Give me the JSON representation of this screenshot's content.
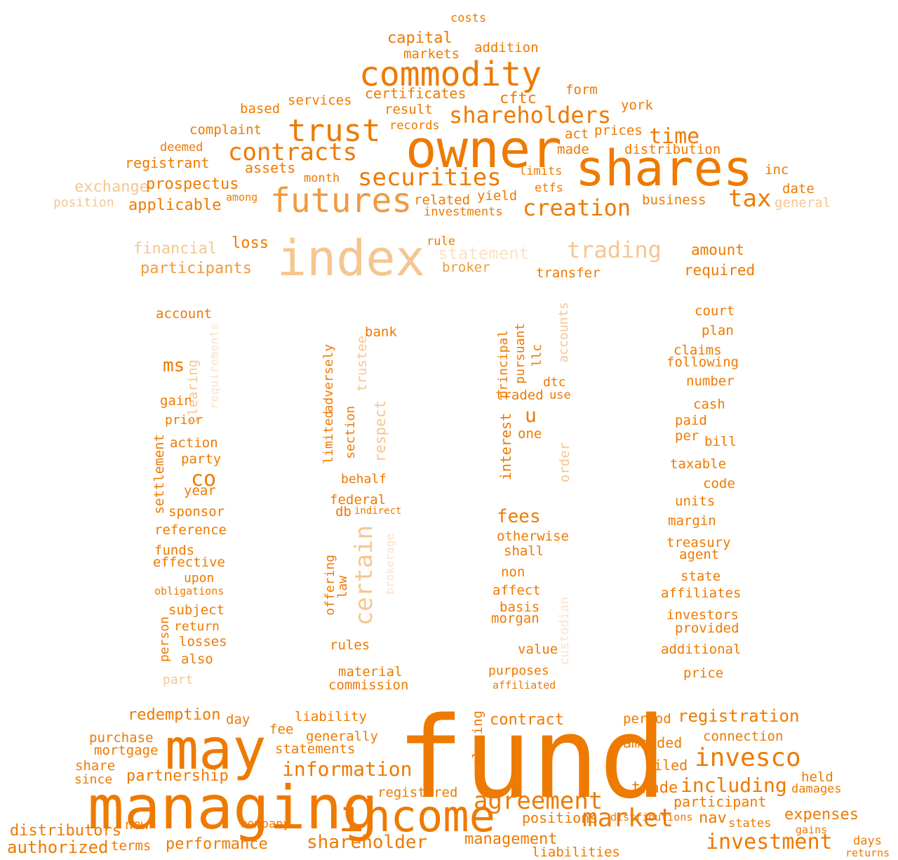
{
  "palette": {
    "dark": "#ee7a00",
    "mid": "#f09a3e",
    "light": "#f6c690",
    "pale": "#fbe2c8"
  },
  "words": [
    [
      "fund",
      "dark"
    ],
    [
      "managing",
      "dark"
    ],
    [
      "may",
      "dark"
    ],
    [
      "income",
      "dark"
    ],
    [
      "owner",
      "dark"
    ],
    [
      "shares",
      "dark"
    ],
    [
      "index",
      "light"
    ],
    [
      "commodity",
      "dark"
    ],
    [
      "futures",
      "mid"
    ],
    [
      "trust",
      "dark"
    ],
    [
      "invesco",
      "dark"
    ],
    [
      "market",
      "dark"
    ],
    [
      "agreement",
      "dark"
    ],
    [
      "contracts",
      "dark"
    ],
    [
      "securities",
      "dark"
    ],
    [
      "creation",
      "dark"
    ],
    [
      "shareholders",
      "dark"
    ],
    [
      "investment",
      "dark"
    ],
    [
      "including",
      "dark"
    ],
    [
      "information",
      "dark"
    ],
    [
      "shareholder",
      "dark"
    ],
    [
      "certain",
      "light"
    ],
    [
      "tax",
      "dark"
    ],
    [
      "time",
      "dark"
    ],
    [
      "trading",
      "light"
    ],
    [
      "co",
      "dark"
    ],
    [
      "ms",
      "dark"
    ],
    [
      "u",
      "dark"
    ],
    [
      "fees",
      "dark"
    ],
    [
      "authorized",
      "dark"
    ],
    [
      "registration",
      "dark"
    ],
    [
      "redemption",
      "dark"
    ],
    [
      "partnership",
      "dark"
    ],
    [
      "performance",
      "dark"
    ],
    [
      "management",
      "dark"
    ],
    [
      "positions",
      "dark"
    ],
    [
      "expenses",
      "dark"
    ],
    [
      "nav",
      "dark"
    ],
    [
      "distributors",
      "dark"
    ],
    [
      "participants",
      "mid"
    ],
    [
      "financial",
      "light"
    ],
    [
      "statement",
      "pale"
    ],
    [
      "exchange",
      "light"
    ],
    [
      "prospectus",
      "dark"
    ],
    [
      "applicable",
      "dark"
    ],
    [
      "registrant",
      "dark"
    ],
    [
      "assets",
      "dark"
    ],
    [
      "capital",
      "dark"
    ],
    [
      "markets",
      "dark"
    ],
    [
      "addition",
      "dark"
    ],
    [
      "costs",
      "dark"
    ],
    [
      "certificates",
      "dark"
    ],
    [
      "cftc",
      "dark"
    ],
    [
      "services",
      "dark"
    ],
    [
      "result",
      "dark"
    ],
    [
      "records",
      "dark"
    ],
    [
      "complaint",
      "dark"
    ],
    [
      "based",
      "dark"
    ],
    [
      "form",
      "dark"
    ],
    [
      "york",
      "dark"
    ],
    [
      "prices",
      "dark"
    ],
    [
      "act",
      "dark"
    ],
    [
      "made",
      "dark"
    ],
    [
      "distribution",
      "dark"
    ],
    [
      "business",
      "dark"
    ],
    [
      "date",
      "dark"
    ],
    [
      "inc",
      "dark"
    ],
    [
      "general",
      "light"
    ],
    [
      "related",
      "dark"
    ],
    [
      "yield",
      "dark"
    ],
    [
      "investments",
      "dark"
    ],
    [
      "limits",
      "dark"
    ],
    [
      "etfs",
      "dark"
    ],
    [
      "month",
      "dark"
    ],
    [
      "among",
      "dark"
    ],
    [
      "position",
      "light"
    ],
    [
      "deemed",
      "dark"
    ],
    [
      "loss",
      "dark"
    ],
    [
      "broker",
      "mid"
    ],
    [
      "rule",
      "dark"
    ],
    [
      "transfer",
      "dark"
    ],
    [
      "required",
      "dark"
    ],
    [
      "amount",
      "dark"
    ],
    [
      "account",
      "dark"
    ],
    [
      "gain",
      "dark"
    ],
    [
      "prior",
      "dark"
    ],
    [
      "action",
      "dark"
    ],
    [
      "party",
      "dark"
    ],
    [
      "year",
      "dark"
    ],
    [
      "sponsor",
      "dark"
    ],
    [
      "reference",
      "dark"
    ],
    [
      "funds",
      "dark"
    ],
    [
      "effective",
      "dark"
    ],
    [
      "upon",
      "dark"
    ],
    [
      "obligations",
      "dark"
    ],
    [
      "subject",
      "dark"
    ],
    [
      "return",
      "dark"
    ],
    [
      "losses",
      "dark"
    ],
    [
      "also",
      "dark"
    ],
    [
      "part",
      "light"
    ],
    [
      "settlement",
      "dark"
    ],
    [
      "clearing",
      "light"
    ],
    [
      "requirements",
      "pale"
    ],
    [
      "person",
      "dark"
    ],
    [
      "bank",
      "dark"
    ],
    [
      "respect",
      "light"
    ],
    [
      "trustee",
      "light"
    ],
    [
      "section",
      "dark"
    ],
    [
      "limited",
      "dark"
    ],
    [
      "adversely",
      "dark"
    ],
    [
      "behalf",
      "dark"
    ],
    [
      "federal",
      "dark"
    ],
    [
      "db",
      "dark"
    ],
    [
      "indirect",
      "dark"
    ],
    [
      "offering",
      "dark"
    ],
    [
      "law",
      "dark"
    ],
    [
      "rules",
      "dark"
    ],
    [
      "material",
      "dark"
    ],
    [
      "commission",
      "dark"
    ],
    [
      "brokerage",
      "pale"
    ],
    [
      "interest",
      "dark"
    ],
    [
      "principal",
      "dark"
    ],
    [
      "pursuant",
      "dark"
    ],
    [
      "llc",
      "dark"
    ],
    [
      "dtc",
      "dark"
    ],
    [
      "traded",
      "dark"
    ],
    [
      "use",
      "dark"
    ],
    [
      "one",
      "dark"
    ],
    [
      "order",
      "light"
    ],
    [
      "otherwise",
      "dark"
    ],
    [
      "shall",
      "dark"
    ],
    [
      "non",
      "dark"
    ],
    [
      "affect",
      "dark"
    ],
    [
      "basis",
      "dark"
    ],
    [
      "morgan",
      "dark"
    ],
    [
      "value",
      "dark"
    ],
    [
      "purposes",
      "dark"
    ],
    [
      "affiliated",
      "dark"
    ],
    [
      "custodian",
      "pale"
    ],
    [
      "accounts",
      "light"
    ],
    [
      "court",
      "dark"
    ],
    [
      "plan",
      "dark"
    ],
    [
      "claims",
      "dark"
    ],
    [
      "following",
      "dark"
    ],
    [
      "number",
      "dark"
    ],
    [
      "cash",
      "dark"
    ],
    [
      "paid",
      "dark"
    ],
    [
      "per",
      "dark"
    ],
    [
      "bill",
      "dark"
    ],
    [
      "taxable",
      "dark"
    ],
    [
      "code",
      "dark"
    ],
    [
      "units",
      "dark"
    ],
    [
      "margin",
      "dark"
    ],
    [
      "treasury",
      "dark"
    ],
    [
      "agent",
      "dark"
    ],
    [
      "state",
      "dark"
    ],
    [
      "affiliates",
      "dark"
    ],
    [
      "investors",
      "dark"
    ],
    [
      "provided",
      "dark"
    ],
    [
      "additional",
      "dark"
    ],
    [
      "price",
      "dark"
    ],
    [
      "purchase",
      "dark"
    ],
    [
      "mortgage",
      "dark"
    ],
    [
      "share",
      "dark"
    ],
    [
      "since",
      "dark"
    ],
    [
      "new",
      "dark"
    ],
    [
      "terms",
      "dark"
    ],
    [
      "day",
      "dark"
    ],
    [
      "liability",
      "dark"
    ],
    [
      "generally",
      "dark"
    ],
    [
      "statements",
      "dark"
    ],
    [
      "fee",
      "dark"
    ],
    [
      "registered",
      "dark"
    ],
    [
      "company",
      "dark"
    ],
    [
      "contract",
      "dark"
    ],
    [
      "period",
      "dark"
    ],
    [
      "amended",
      "dark"
    ],
    [
      "filed",
      "dark"
    ],
    [
      "trade",
      "dark"
    ],
    [
      "participant",
      "dark"
    ],
    [
      "connection",
      "dark"
    ],
    [
      "held",
      "dark"
    ],
    [
      "damages",
      "dark"
    ],
    [
      "liabilities",
      "dark"
    ],
    [
      "states",
      "dark"
    ],
    [
      "distributions",
      "dark"
    ],
    [
      "days",
      "dark"
    ],
    [
      "returns",
      "dark"
    ],
    [
      "gains",
      "dark"
    ],
    [
      "closing",
      "dark"
    ]
  ]
}
